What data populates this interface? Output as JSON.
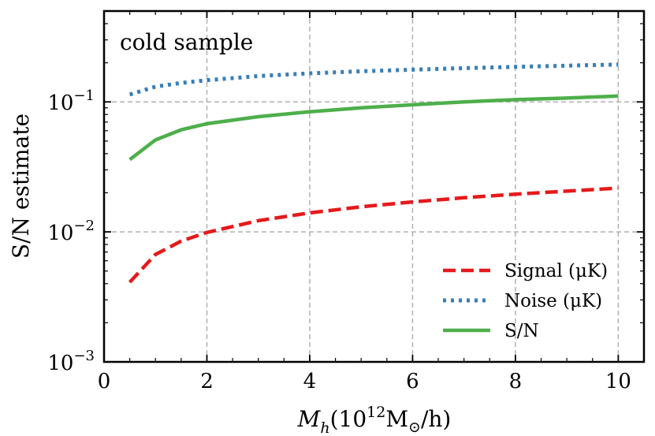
{
  "chart_data": {
    "type": "line",
    "annotation": "cold sample",
    "xlabel": "M_h(10^12 M_⊙/h)",
    "ylabel": "S/N estimate",
    "xlim": [
      0,
      10.5
    ],
    "ylim": [
      0.001,
      0.5
    ],
    "yscale": "log",
    "grid": true,
    "legend_position": "bottom-right",
    "x_ticks": [
      "0",
      "2",
      "4",
      "6",
      "8",
      "10"
    ],
    "y_ticks": [
      {
        "base": "10",
        "exp": "−3",
        "value": 0.001
      },
      {
        "base": "10",
        "exp": "−2",
        "value": 0.01
      },
      {
        "base": "10",
        "exp": "−1",
        "value": 0.1
      }
    ],
    "x": [
      0.5,
      1,
      1.5,
      2,
      3,
      4,
      5,
      6,
      7,
      8,
      9,
      10
    ],
    "series": [
      {
        "name": "Signal (μK)",
        "style": "dashed",
        "color": "#e41a1c",
        "values": [
          0.0041,
          0.0067,
          0.0085,
          0.0099,
          0.0122,
          0.014,
          0.0156,
          0.017,
          0.0183,
          0.0195,
          0.0206,
          0.0217
        ]
      },
      {
        "name": "Noise (μK)",
        "style": "dotted",
        "color": "#377eb8",
        "values": [
          0.114,
          0.131,
          0.14,
          0.147,
          0.158,
          0.166,
          0.172,
          0.177,
          0.182,
          0.186,
          0.19,
          0.194
        ]
      },
      {
        "name": "S/N",
        "style": "solid",
        "color": "#4daf4a",
        "values": [
          0.036,
          0.051,
          0.061,
          0.068,
          0.077,
          0.084,
          0.09,
          0.095,
          0.1,
          0.104,
          0.107,
          0.111
        ]
      }
    ]
  }
}
